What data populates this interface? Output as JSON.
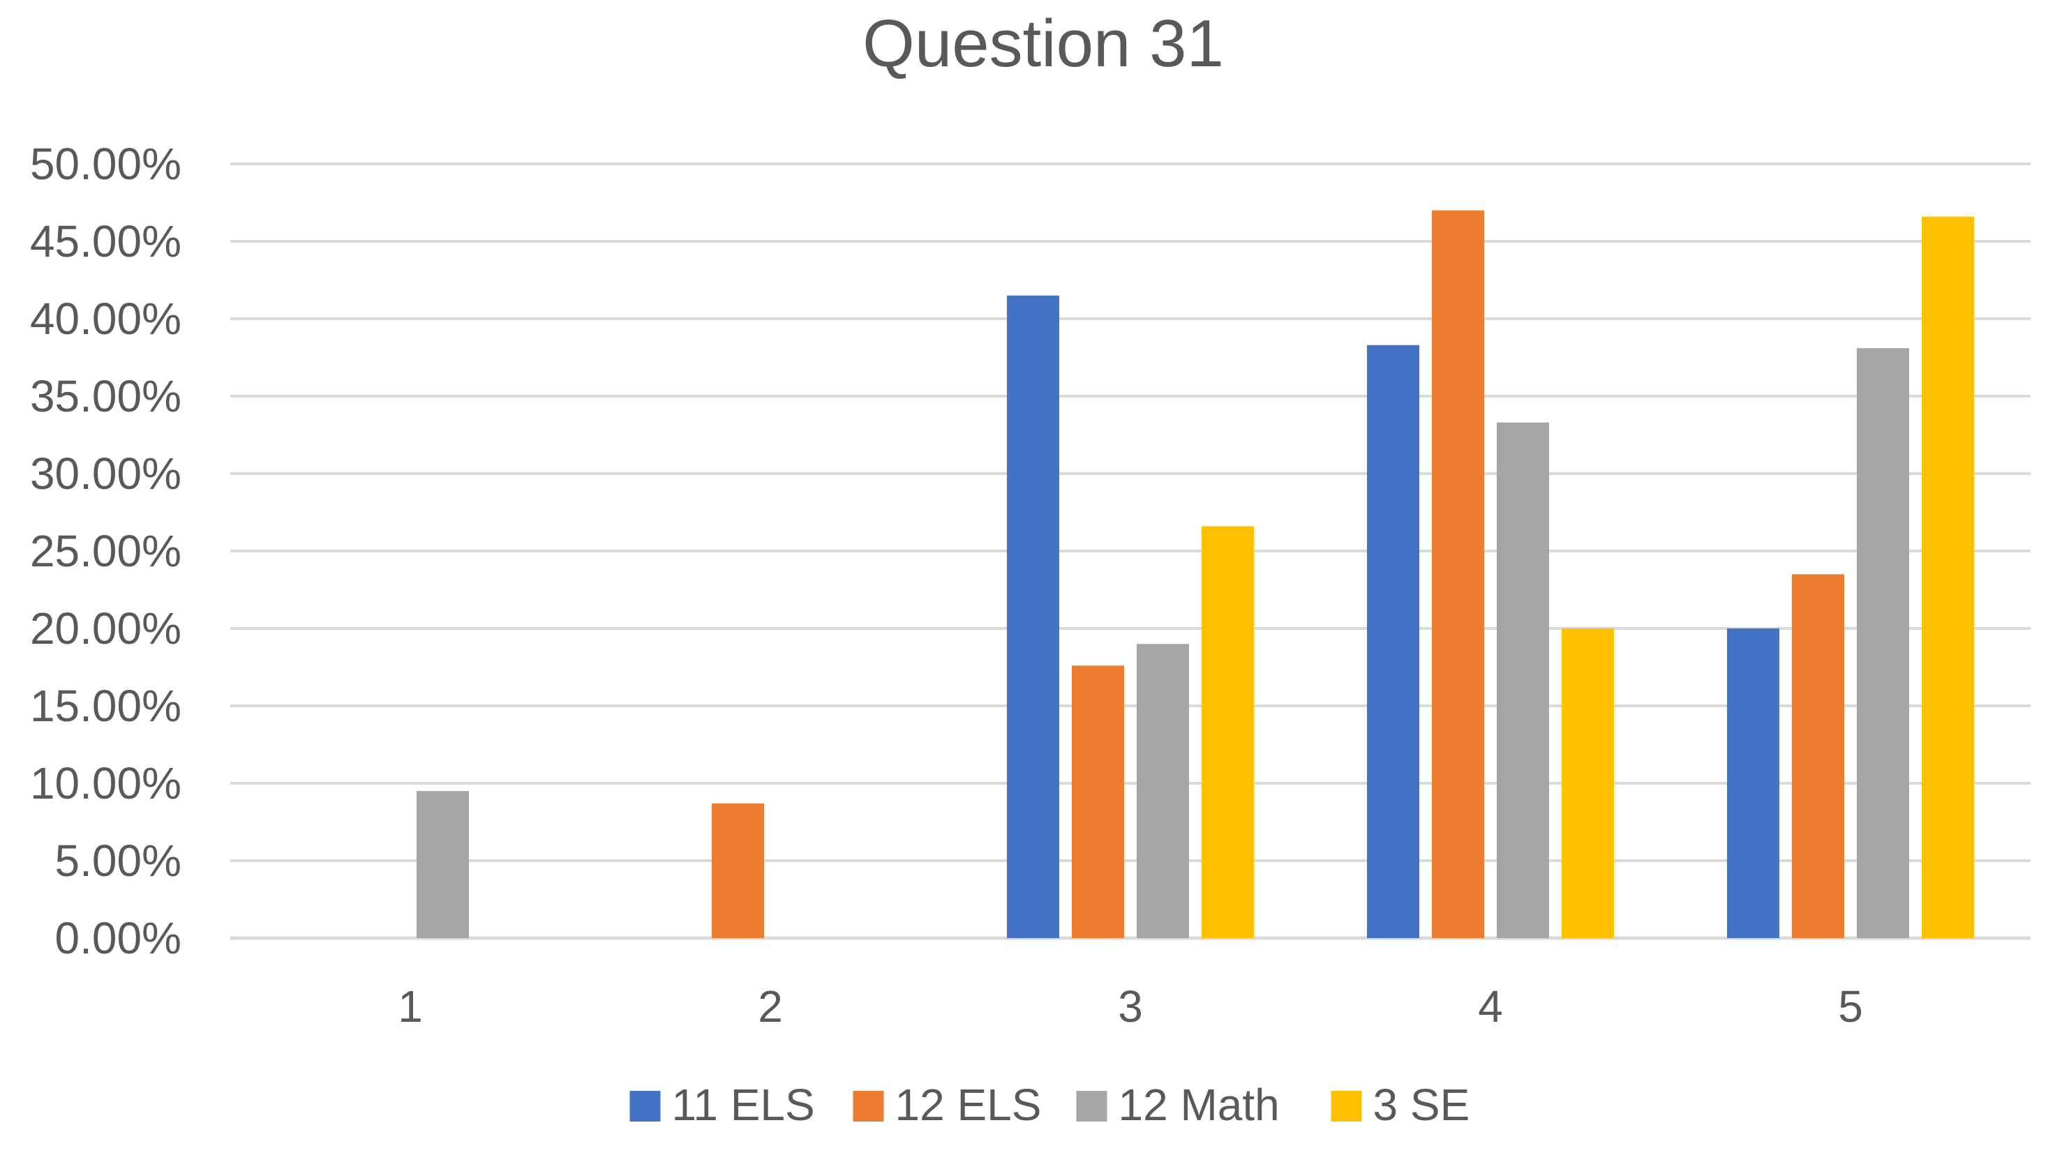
{
  "chart_data": {
    "type": "bar",
    "title": "Question 31",
    "xlabel": "",
    "ylabel": "",
    "categories": [
      "1",
      "2",
      "3",
      "4",
      "5"
    ],
    "ylim": [
      0,
      0.5
    ],
    "yticks": [
      0,
      0.05,
      0.1,
      0.15,
      0.2,
      0.25,
      0.3,
      0.35,
      0.4,
      0.45,
      0.5
    ],
    "ytick_labels": [
      "0.00%",
      "5.00%",
      "10.00%",
      "15.00%",
      "20.00%",
      "25.00%",
      "30.00%",
      "35.00%",
      "40.00%",
      "45.00%",
      "50.00%"
    ],
    "grid": true,
    "legend_position": "bottom",
    "series": [
      {
        "name": "11 ELS",
        "color": "#4472c4",
        "values": [
          0,
          0,
          0.415,
          0.383,
          0.2
        ]
      },
      {
        "name": "12 ELS",
        "color": "#ed7d31",
        "values": [
          0,
          0.087,
          0.176,
          0.47,
          0.235
        ]
      },
      {
        "name": "12 Math",
        "color": "#a5a5a5",
        "values": [
          0.095,
          0,
          0.19,
          0.333,
          0.381
        ]
      },
      {
        "name": "3 SE",
        "color": "#ffc000",
        "values": [
          0,
          0,
          0.266,
          0.2,
          0.466
        ]
      }
    ]
  }
}
